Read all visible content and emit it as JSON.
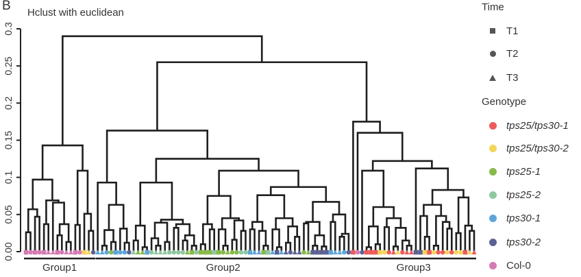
{
  "panel_label": "B",
  "chart_data": {
    "type": "dendrogram",
    "title": "Hclust with euclidean",
    "ylabel": "",
    "ylim": [
      0,
      0.3
    ],
    "yticks": [
      "0.00",
      "0.05",
      "0.1",
      "0.15",
      "0.2",
      "0.25",
      "0.3"
    ],
    "ytick_values": [
      0,
      0.05,
      0.1,
      0.15,
      0.2,
      0.25,
      0.3
    ],
    "groups": [
      "Group1",
      "Group2",
      "Group3"
    ],
    "tree": [
      0.29,
      [
        0.143,
        [
          0.097,
          [
            0.057,
            [
              0.026,
              "gs",
              "gc"
            ],
            [
              0.047,
              "gs",
              "gc"
            ]
          ],
          [
            0.069,
            [
              0.037,
              "gs",
              "gt"
            ],
            [
              0.066,
              "gt",
              [
                0.037,
                [
                  0.022,
                  "gs",
                  "gc"
                ],
                [
                  0.013,
                  "gt",
                  "gt"
                ]
              ]
            ]
          ]
        ],
        [
          0.109,
          [
            0.036,
            "gs",
            "gc"
          ],
          [
            0.051,
            "bs",
            [
              0.028,
              "bt",
              "fc"
            ]
          ]
        ]
      ],
      [
        0.255,
        [
          0.163,
          [
            0.093,
            "et",
            [
              0.063,
              [
                0.029,
                [
                  0.008,
                  "et",
                  "ec"
                ],
                [
                  0.013,
                  "cc",
                  "es"
                ]
              ],
              [
                0.031,
                "ec",
                [
                  0.012,
                  "ec",
                  "fc"
                ]
              ]
            ]
          ],
          [
            0.125,
            [
              0.093,
              [
                0.035,
                [
                  0.015,
                  "dt",
                  "ct"
                ],
                [
                  0.006,
                  "ct",
                  "es"
                ]
              ],
              [
                0.043,
                [
                  0.039,
                  [
                    0.018,
                    "dc",
                    [
                      0.008,
                      "dt",
                      "dt"
                    ]
                  ],
                  [
                    0.013,
                    "dt",
                    "dc"
                  ]
                ],
                [
                  0.037,
                  [
                    0.032,
                    "dc",
                    "dc"
                  ],
                  [
                    0.022,
                    [
                      0.015,
                      "dc",
                      "ct"
                    ],
                    [
                      0.008,
                      "cs",
                      "dc"
                    ]
                  ]
                ]
              ]
            ],
            [
              0.109,
              [
                0.075,
                [
                  0.037,
                  [
                    0.01,
                    "cs",
                    "cs"
                  ],
                  [
                    0.03,
                    "cs",
                    "ds"
                  ]
                ],
                [
                  0.045,
                  [
                    0.03,
                    "cs",
                    [
                      0.008,
                      "cc",
                      "ct"
                    ]
                  ],
                  [
                    0.042,
                    [
                      0.016,
                      "cc",
                      "cc"
                    ],
                    [
                      0.028,
                      "dc",
                      "dc"
                    ]
                  ]
                ]
              ],
              [
                0.087,
                [
                  0.076,
                  [
                    0.04,
                    [
                      0.03,
                      "es",
                      "et"
                    ],
                    [
                      0.028,
                      "et",
                      [
                        0.008,
                        "cs",
                        "ds"
                      ]
                    ]
                  ],
                  [
                    0.045,
                    [
                      0.03,
                      "et",
                      [
                        0.006,
                        "fs",
                        "et"
                      ]
                    ],
                    [
                      0.034,
                      [
                        0.012,
                        "ft",
                        "fc"
                      ],
                      [
                        0.02,
                        "ft",
                        "ft"
                      ]
                    ]
                  ]
                ],
                [
                  0.067,
                  [
                    0.04,
                    [
                      0.038,
                      "cc",
                      "ct"
                    ],
                    [
                      0.022,
                      [
                        0.008,
                        "fs",
                        "fs"
                      ],
                      [
                        0.007,
                        "fs",
                        "fs"
                      ]
                    ]
                  ],
                  [
                    0.05,
                    [
                      0.04,
                      "es",
                      "et"
                    ],
                    [
                      0.024,
                      [
                        0.02,
                        "et",
                        "ec"
                      ],
                      "fc"
                    ]
                  ]
                ]
              ]
            ]
          ]
        ],
        [
          0.175,
          "as",
          [
            0.16,
            "gc",
            [
              0.122,
              [
                0.109,
                "fc",
                [
                  0.06,
                  [
                    0.034,
                    [
                      0.006,
                      "as",
                      "as"
                    ],
                    [
                      0.01,
                      "as",
                      "bs"
                    ]
                  ],
                  [
                    0.045,
                    [
                      0.033,
                      "bc",
                      "ac"
                    ],
                    [
                      0.032,
                      [
                        0.007,
                        "at",
                        "bt"
                      ],
                      [
                        0.015,
                        "ac",
                        [
                          0.008,
                          "at",
                          "at"
                        ]
                      ]
                    ]
                  ]
                ]
              ],
              [
                0.112,
                "fs",
                [
                  0.083,
                  [
                    0.063,
                    [
                      0.048,
                      "fs",
                      [
                        0.02,
                        "bs",
                        "as"
                      ]
                    ],
                    [
                      0.048,
                      [
                        0.008,
                        "bc",
                        "ac"
                      ],
                      [
                        0.04,
                        "ac",
                        [
                          0.031,
                          "bc",
                          "ac"
                        ]
                      ]
                    ]
                  ],
                  [
                    0.073,
                    [
                      0.025,
                      "bc",
                      "bc"
                    ],
                    [
                      0.035,
                      "as",
                      [
                        0.028,
                        "bt",
                        "at"
                      ]
                    ]
                  ]
                ]
              ]
            ]
          ]
        ]
      ]
    ]
  },
  "legend": {
    "time_title": "Time",
    "time": [
      {
        "code": "s",
        "label": "T1",
        "shape": "square"
      },
      {
        "code": "c",
        "label": "T2",
        "shape": "circle"
      },
      {
        "code": "t",
        "label": "T3",
        "shape": "triangle"
      }
    ],
    "genotype_title": "Genotype",
    "genotypes": [
      {
        "code": "a",
        "label": "tps25/tps30-1",
        "color": "#ef5b5b",
        "italic": true
      },
      {
        "code": "b",
        "label": "tps25/tps30-2",
        "color": "#f3d55a",
        "italic": true
      },
      {
        "code": "c",
        "label": "tps25-1",
        "color": "#88b94c",
        "italic": true
      },
      {
        "code": "d",
        "label": "tps25-2",
        "color": "#8fc8a0",
        "italic": true
      },
      {
        "code": "e",
        "label": "tps30-1",
        "color": "#5ea6d8",
        "italic": true
      },
      {
        "code": "f",
        "label": "tps30-2",
        "color": "#5d6294",
        "italic": true
      },
      {
        "code": "g",
        "label": "Col-0",
        "color": "#d67ab3",
        "italic": false
      }
    ]
  }
}
